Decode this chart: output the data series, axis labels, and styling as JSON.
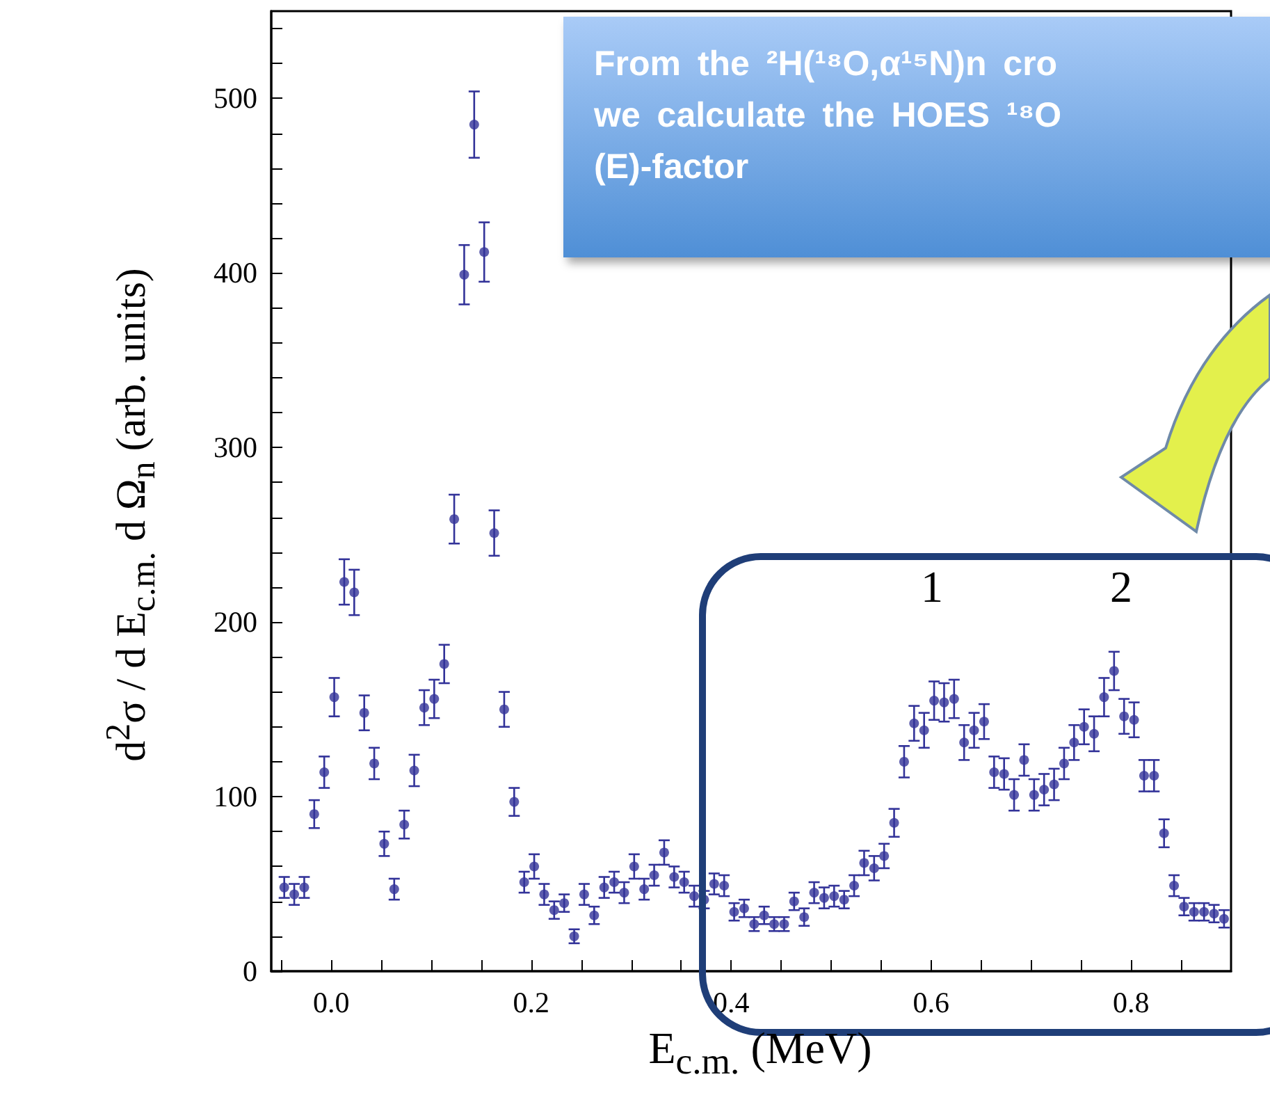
{
  "chart_data": {
    "type": "scatter",
    "xlabel": "E$_{c.m.}$ (MeV)",
    "ylabel": "d$^{2}$σ / d E$_{c.m.}$ d Ω$_{n}$ (arb. units)",
    "x": [
      -0.047,
      -0.037,
      -0.027,
      -0.017,
      -0.007,
      0.003,
      0.013,
      0.023,
      0.033,
      0.043,
      0.053,
      0.063,
      0.073,
      0.083,
      0.093,
      0.103,
      0.113,
      0.123,
      0.133,
      0.143,
      0.153,
      0.163,
      0.173,
      0.183,
      0.193,
      0.203,
      0.213,
      0.223,
      0.233,
      0.243,
      0.253,
      0.263,
      0.273,
      0.283,
      0.293,
      0.303,
      0.313,
      0.323,
      0.333,
      0.343,
      0.353,
      0.363,
      0.373,
      0.383,
      0.393,
      0.403,
      0.413,
      0.423,
      0.433,
      0.443,
      0.453,
      0.463,
      0.473,
      0.483,
      0.493,
      0.503,
      0.513,
      0.523,
      0.533,
      0.543,
      0.553,
      0.563,
      0.573,
      0.583,
      0.593,
      0.603,
      0.613,
      0.623,
      0.633,
      0.643,
      0.653,
      0.663,
      0.673,
      0.683,
      0.693,
      0.703,
      0.713,
      0.723,
      0.733,
      0.743,
      0.753,
      0.763,
      0.773,
      0.783,
      0.793,
      0.803,
      0.813,
      0.823,
      0.833,
      0.843,
      0.853,
      0.863,
      0.873,
      0.883,
      0.893
    ],
    "series": [
      {
        "color": "#333399",
        "values": [
          48,
          44,
          48,
          90,
          114,
          157,
          223,
          217,
          148,
          119,
          73,
          47,
          84,
          115,
          151,
          156,
          176,
          259,
          399,
          485,
          412,
          251,
          150,
          97,
          51,
          60,
          44,
          35,
          39,
          20,
          44,
          32,
          48,
          51,
          45,
          60,
          47,
          55,
          68,
          54,
          51,
          43,
          41,
          50,
          49,
          34,
          36,
          27,
          32,
          27,
          27,
          40,
          31,
          45,
          42,
          43,
          41,
          49,
          62,
          59,
          66,
          85,
          120,
          142,
          138,
          155,
          154,
          156,
          131,
          138,
          143,
          114,
          113,
          101,
          121,
          101,
          104,
          107,
          119,
          131,
          140,
          136,
          157,
          172,
          146,
          144,
          112,
          112,
          79,
          49,
          37,
          34,
          34,
          33,
          30
        ],
        "errors": [
          6,
          6,
          6,
          8,
          9,
          11,
          13,
          13,
          10,
          9,
          7,
          6,
          8,
          9,
          10,
          11,
          11,
          14,
          17,
          19,
          17,
          13,
          10,
          8,
          6,
          7,
          6,
          5,
          5,
          4,
          6,
          5,
          6,
          6,
          6,
          7,
          6,
          6,
          7,
          6,
          6,
          6,
          5,
          6,
          6,
          5,
          5,
          4,
          5,
          4,
          4,
          5,
          5,
          6,
          6,
          6,
          5,
          6,
          7,
          7,
          7,
          8,
          9,
          10,
          10,
          11,
          11,
          11,
          10,
          10,
          10,
          9,
          9,
          9,
          9,
          9,
          9,
          9,
          9,
          10,
          10,
          10,
          11,
          11,
          10,
          10,
          9,
          9,
          8,
          6,
          5,
          5,
          5,
          5,
          5
        ]
      }
    ],
    "xlim": [
      -0.06,
      0.9
    ],
    "xticks": [
      {
        "value": -0.05,
        "label": null
      },
      {
        "value": 0,
        "label": "0.0"
      },
      {
        "value": 0.05,
        "label": null
      },
      {
        "value": 0.1,
        "label": null
      },
      {
        "value": 0.15,
        "label": null
      },
      0.2,
      {
        "value": 0.25,
        "label": null
      },
      {
        "value": 0.3,
        "label": null
      },
      {
        "value": 0.35,
        "label": null
      },
      0.4,
      {
        "value": 0.45,
        "label": null
      },
      {
        "value": 0.5,
        "label": null
      },
      {
        "value": 0.55,
        "label": null
      },
      0.6,
      {
        "value": 0.65,
        "label": null
      },
      {
        "value": 0.7,
        "label": null
      },
      {
        "value": 0.75,
        "label": null
      },
      0.8,
      {
        "value": 0.85,
        "label": null
      }
    ],
    "ylim": [
      0,
      550
    ],
    "yticks": [
      0,
      {
        "value": 20,
        "label": null
      },
      {
        "value": 40,
        "label": null
      },
      {
        "value": 60,
        "label": null
      },
      {
        "value": 80,
        "label": null
      },
      100,
      {
        "value": 120,
        "label": null
      },
      {
        "value": 140,
        "label": null
      },
      {
        "value": 160,
        "label": null
      },
      {
        "value": 180,
        "label": null
      },
      200,
      {
        "value": 220,
        "label": null
      },
      {
        "value": 240,
        "label": null
      },
      {
        "value": 260,
        "label": null
      },
      {
        "value": 280,
        "label": null
      },
      300,
      {
        "value": 320,
        "label": null
      },
      {
        "value": 340,
        "label": null
      },
      {
        "value": 360,
        "label": null
      },
      {
        "value": 380,
        "label": null
      },
      400,
      {
        "value": 420,
        "label": null
      },
      {
        "value": 440,
        "label": null
      },
      {
        "value": 460,
        "label": null
      },
      {
        "value": 480,
        "label": null
      },
      500,
      {
        "value": 520,
        "label": null
      },
      {
        "value": 540,
        "label": null
      }
    ],
    "grid": false,
    "marker": "circle",
    "annotations": [
      "1",
      "2",
      "From the ²H(¹⁸O,α¹⁵N)n cro\nwe calculate the HOES ¹⁸O\n(E)-factor"
    ]
  }
}
